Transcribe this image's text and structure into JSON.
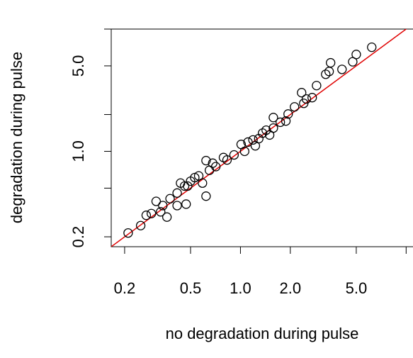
{
  "chart_data": {
    "type": "scatter",
    "xlabel": "no degradation during pulse",
    "ylabel": "degradation during pulse",
    "log_x": true,
    "log_y": true,
    "color": "#000000",
    "xlim": [
      0.166,
      11
    ],
    "ylim": [
      0.166,
      10
    ],
    "xticks": [
      0.2,
      {
        "value": 0.5,
        "label": "0.5"
      },
      {
        "value": 1,
        "label": "1.0"
      },
      {
        "value": 2,
        "label": "2.0"
      },
      {
        "value": 5,
        "label": "5.0"
      },
      {
        "value": 10,
        "label": null
      }
    ],
    "yticks": [
      0.2,
      {
        "value": 0.5,
        "label": null
      },
      {
        "value": 1,
        "label": "1.0"
      },
      {
        "value": 2,
        "label": null
      },
      {
        "value": 5,
        "label": "5.0"
      },
      {
        "value": 10,
        "label": null
      }
    ],
    "x": [
      0.21,
      0.25,
      0.31,
      0.47,
      0.62,
      0.62,
      0.36,
      6.2,
      5.0,
      4.76,
      3.5,
      3.27,
      3.43,
      2.88,
      4.1,
      2.5,
      2.34,
      2.41,
      1.94,
      1.88,
      1.58,
      1.58,
      1.36,
      1.19,
      1.01,
      1.06,
      0.915,
      0.83,
      0.71,
      0.65,
      0.56,
      0.5,
      0.46,
      0.415,
      0.376,
      0.34,
      0.29,
      0.27,
      0.33,
      0.435,
      0.53,
      0.68,
      0.79,
      1.11,
      1.29,
      1.43,
      1.74,
      2.12,
      2.71,
      1.23,
      1.5,
      0.415,
      0.48,
      0.59
    ],
    "values": [
      0.215,
      0.247,
      0.39,
      0.37,
      0.43,
      0.84,
      0.29,
      7.1,
      6.2,
      5.4,
      5.3,
      4.27,
      4.5,
      3.45,
      4.68,
      2.68,
      3.02,
      2.47,
      2.02,
      1.77,
      1.89,
      1.55,
      1.41,
      1.24,
      1.14,
      1.0,
      0.935,
      0.85,
      0.75,
      0.7,
      0.63,
      0.57,
      0.52,
      0.456,
      0.41,
      0.36,
      0.31,
      0.3,
      0.32,
      0.55,
      0.61,
      0.8,
      0.89,
      1.19,
      1.27,
      1.49,
      1.73,
      2.31,
      2.75,
      1.11,
      1.36,
      0.36,
      0.52,
      0.55
    ]
  }
}
